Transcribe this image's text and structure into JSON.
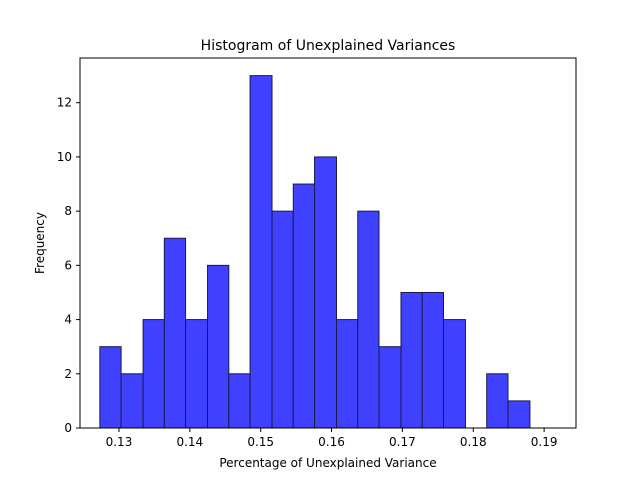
{
  "chart_data": {
    "type": "bar",
    "title": "Histogram of Unexplained Variances",
    "xlabel": "Percentage of Unexplained Variance",
    "ylabel": "Frequency",
    "xlim": [
      0.1245,
      0.1945
    ],
    "ylim": [
      0,
      13.65
    ],
    "xticks": [
      0.13,
      0.14,
      0.15,
      0.16,
      0.17,
      0.18,
      0.19
    ],
    "xtick_labels": [
      "0.13",
      "0.14",
      "0.15",
      "0.16",
      "0.17",
      "0.18",
      "0.19"
    ],
    "yticks": [
      0,
      2,
      4,
      6,
      8,
      10,
      12
    ],
    "ytick_labels": [
      "0",
      "2",
      "4",
      "6",
      "8",
      "10",
      "12"
    ],
    "bins": [
      {
        "x0": 0.1273,
        "x1": 0.1303,
        "value": 3
      },
      {
        "x0": 0.1303,
        "x1": 0.1334,
        "value": 2
      },
      {
        "x0": 0.1334,
        "x1": 0.1364,
        "value": 4
      },
      {
        "x0": 0.1364,
        "x1": 0.1394,
        "value": 7
      },
      {
        "x0": 0.1394,
        "x1": 0.1425,
        "value": 4
      },
      {
        "x0": 0.1425,
        "x1": 0.1455,
        "value": 6
      },
      {
        "x0": 0.1455,
        "x1": 0.1485,
        "value": 2
      },
      {
        "x0": 0.1485,
        "x1": 0.1516,
        "value": 13
      },
      {
        "x0": 0.1516,
        "x1": 0.1546,
        "value": 8
      },
      {
        "x0": 0.1546,
        "x1": 0.1576,
        "value": 9
      },
      {
        "x0": 0.1576,
        "x1": 0.1607,
        "value": 10
      },
      {
        "x0": 0.1607,
        "x1": 0.1637,
        "value": 4
      },
      {
        "x0": 0.1637,
        "x1": 0.1667,
        "value": 8
      },
      {
        "x0": 0.1667,
        "x1": 0.1698,
        "value": 3
      },
      {
        "x0": 0.1698,
        "x1": 0.1728,
        "value": 5
      },
      {
        "x0": 0.1728,
        "x1": 0.1758,
        "value": 5
      },
      {
        "x0": 0.1758,
        "x1": 0.1789,
        "value": 4
      },
      {
        "x0": 0.1789,
        "x1": 0.1819,
        "value": 0
      },
      {
        "x0": 0.1819,
        "x1": 0.1849,
        "value": 2
      },
      {
        "x0": 0.1849,
        "x1": 0.188,
        "value": 1
      }
    ],
    "bar_color": "#4040ff",
    "edge_color": "#1a1a4d",
    "grid": false,
    "legend": "none"
  }
}
